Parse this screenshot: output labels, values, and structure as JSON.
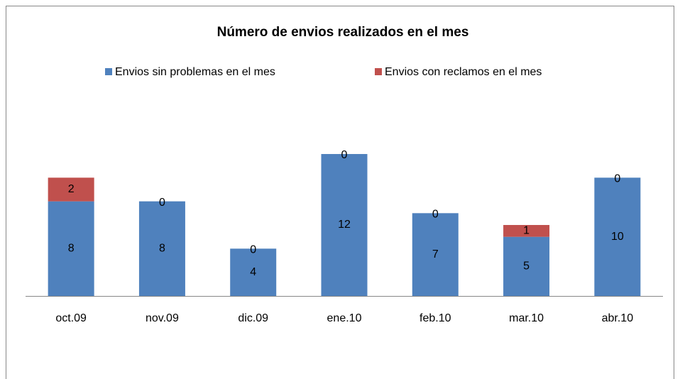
{
  "chart_data": {
    "type": "stacked_bar",
    "title": "Número de envios realizados en el mes",
    "categories": [
      "oct.09",
      "nov.09",
      "dic.09",
      "ene.10",
      "feb.10",
      "mar.10",
      "abr.10"
    ],
    "series": [
      {
        "name": "Envios sin problemas en el mes",
        "color": "#4f81bd",
        "values": [
          8,
          8,
          4,
          12,
          7,
          5,
          10
        ]
      },
      {
        "name": "Envios con reclamos en el mes",
        "color": "#c0504d",
        "values": [
          2,
          0,
          0,
          0,
          0,
          1,
          0
        ]
      }
    ],
    "legend": "top",
    "grid": false
  }
}
